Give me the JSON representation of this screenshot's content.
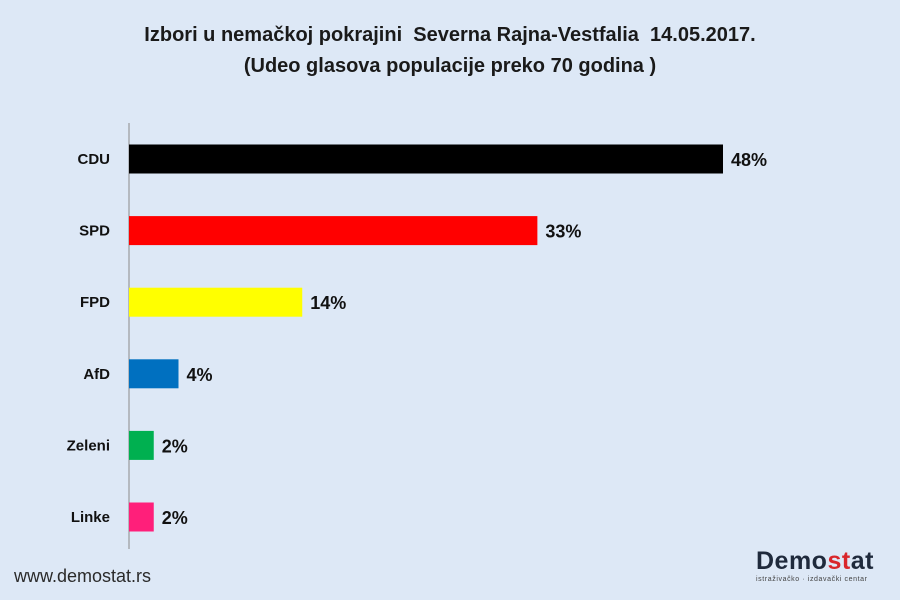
{
  "chart_data": {
    "type": "bar",
    "orientation": "horizontal",
    "title": "Izbori u nemačkoj pokrajini  Severna Rajna-Vestfalia  14.05.2017.",
    "subtitle": "(Udeo glasova populacije preko 70 godina )",
    "categories": [
      "CDU",
      "SPD",
      "FPD",
      "AfD",
      "Zeleni",
      "Linke"
    ],
    "values": [
      48,
      33,
      14,
      4,
      2,
      2
    ],
    "value_labels": [
      "48%",
      "33%",
      "14%",
      "4%",
      "2%",
      "2%"
    ],
    "colors": [
      "#000000",
      "#ff0000",
      "#ffff00",
      "#0070c0",
      "#00b050",
      "#ff1f7a"
    ],
    "xlim": [
      0,
      48
    ],
    "grid": false,
    "legend": "none"
  },
  "footer": {
    "website": "www.demostat.rs",
    "logo_text_main": "Demo",
    "logo_text_accent": "st",
    "logo_text_end": "at",
    "logo_tagline": "istraživačko · izdavački  centar"
  }
}
